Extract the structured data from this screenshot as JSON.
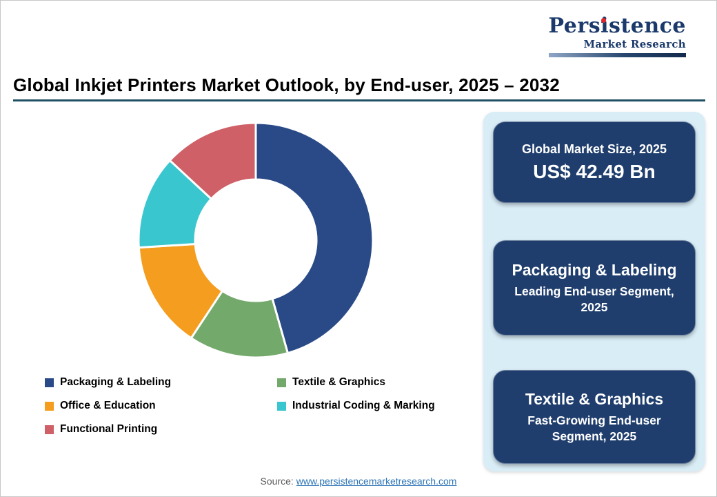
{
  "logo": {
    "title_pre": "Pers",
    "title_i": "i",
    "title_post": "stence",
    "subtitle": "Market Research"
  },
  "header": {
    "title": "Global Inkjet Printers Market Outlook, by End-user, 2025 – 2032"
  },
  "chart_data": {
    "type": "pie",
    "donut": true,
    "start_angle_deg": 0,
    "direction": "clockwise",
    "categories": [
      "Packaging & Labeling",
      "Textile & Graphics",
      "Office & Education",
      "Industrial Coding & Marking",
      "Functional Printing"
    ],
    "values": [
      45.6,
      13.7,
      14.7,
      12.9,
      13.1
    ],
    "values_note": "percent shares estimated from arc angles; no numeric labels shown in image",
    "colors": [
      "#2A4A87",
      "#74A96C",
      "#F49D1F",
      "#3AC6CE",
      "#CF6067"
    ],
    "inner_radius_ratio": 0.52,
    "legend_position": "bottom",
    "title": "Global Inkjet Printers Market Outlook, by End-user, 2025 – 2032"
  },
  "panel": {
    "cards": [
      {
        "line1": "Global Market Size, 2025",
        "line2": "US$ 42.49 Bn"
      },
      {
        "line1": "Packaging & Labeling",
        "line2": "Leading End-user Segment, 2025"
      },
      {
        "line1": "Textile & Graphics",
        "line2": "Fast-Growing End-user Segment, 2025"
      }
    ]
  },
  "footer": {
    "source_label": "Source:",
    "source_link_text": "www.persistencemarketresearch.com"
  },
  "theme": {
    "navy": "#1F3E6D",
    "panel_bg": "#D9EDF7",
    "rule": "#1E4F63",
    "link": "#2E75B6",
    "logo_navy": "#1B3A6B",
    "logo_red": "#E4252B",
    "text": "#000000",
    "source_text": "#595959"
  }
}
